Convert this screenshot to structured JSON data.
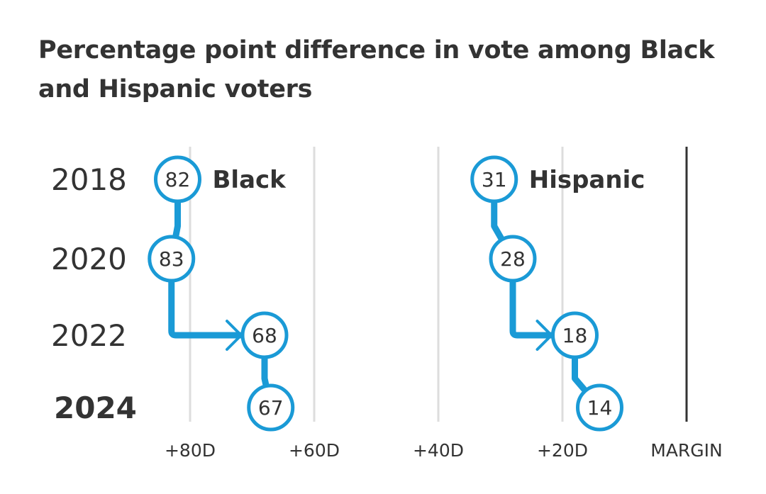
{
  "title": "Percentage point difference in vote among Black and Hispanic voters",
  "colors": {
    "accent": "#1a9ad6",
    "text": "#333333",
    "grid": "#dddddd",
    "axis": "#333333"
  },
  "chart_data": {
    "type": "line",
    "title": "Percentage point difference in vote among Black and Hispanic voters",
    "years": [
      "2018",
      "2020",
      "2022",
      "2024"
    ],
    "highlight_year": "2024",
    "x_axis": {
      "direction": "reversed",
      "ticks": [
        80,
        60,
        40,
        20
      ],
      "tick_labels": [
        "+80D",
        "+60D",
        "+40D",
        "+20D"
      ],
      "end_label": "MARGIN",
      "range": [
        90,
        0
      ],
      "grid": true
    },
    "series": [
      {
        "name": "Black",
        "values": [
          82,
          83,
          68,
          67
        ],
        "labels": [
          "82",
          "83",
          "68",
          "67"
        ]
      },
      {
        "name": "Hispanic",
        "values": [
          31,
          28,
          18,
          14
        ],
        "labels": [
          "31",
          "28",
          "18",
          "14"
        ]
      }
    ]
  }
}
